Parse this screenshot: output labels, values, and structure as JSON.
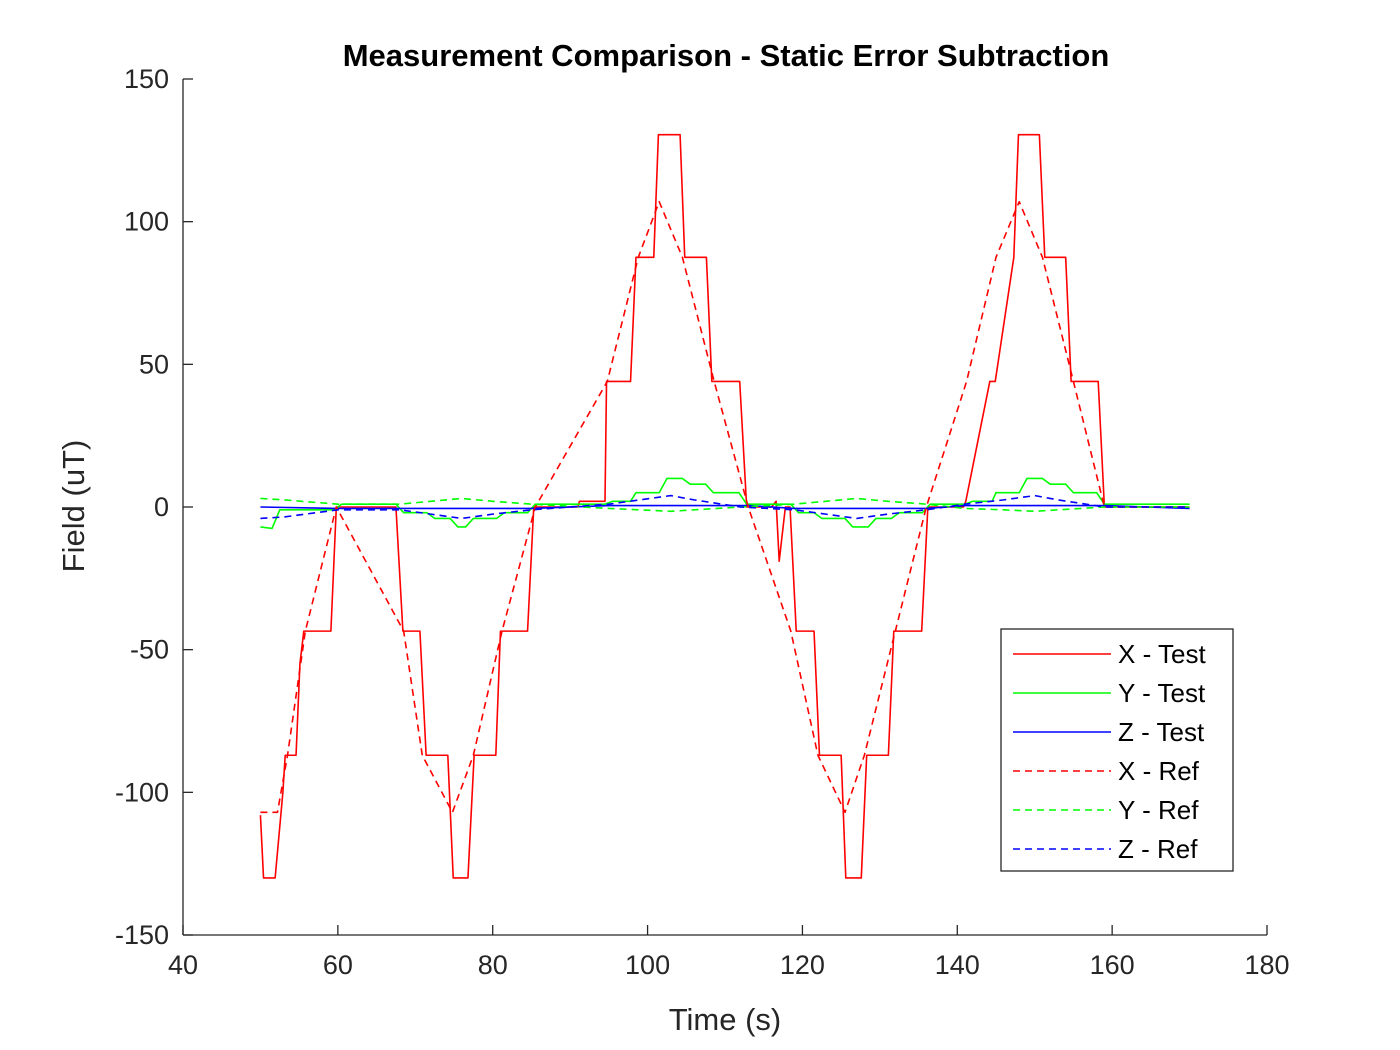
{
  "chart_data": {
    "type": "line",
    "title": "Measurement Comparison - Static Error Subtraction",
    "xlabel": "Time (s)",
    "ylabel": "Field (uT)",
    "xlim": [
      40,
      180
    ],
    "ylim": [
      -150,
      150
    ],
    "xticks": [
      40,
      60,
      80,
      100,
      120,
      140,
      160,
      180
    ],
    "yticks": [
      -150,
      -100,
      -50,
      0,
      50,
      100,
      150
    ],
    "xtick_labels": [
      "40",
      "60",
      "80",
      "100",
      "120",
      "140",
      "160",
      "180"
    ],
    "ytick_labels": [
      "-150",
      "-100",
      "-50",
      "0",
      "50",
      "100",
      "150"
    ],
    "grid": false,
    "legend_position": "bottom-right",
    "series": [
      {
        "name": "X - Test",
        "color": "#ff0000",
        "dash": "solid",
        "x": [
          50,
          50.4,
          51.9,
          52.9,
          53.2,
          54.6,
          55.1,
          55.6,
          59.1,
          59.8,
          67.5,
          68.4,
          70.6,
          71.4,
          74.2,
          74.9,
          76.8,
          77.6,
          80.4,
          81.0,
          84.5,
          85.3,
          91.0,
          91.2,
          94.5,
          94.7,
          97.8,
          98.5,
          100.8,
          101.4,
          104.2,
          104.8,
          107.6,
          108.3,
          111.9,
          112.8,
          116.0,
          116.6,
          117.0,
          117.8,
          118.4,
          119.2,
          121.5,
          122.2,
          125.0,
          125.6,
          127.6,
          128.3,
          131.1,
          131.8,
          135.4,
          136.2,
          140.8,
          141.1,
          144.2,
          144.9,
          147.3,
          147.9,
          150.6,
          151.3,
          154.0,
          154.7,
          158.2,
          159.0,
          170
        ],
        "y": [
          -108,
          -130,
          -130,
          -100,
          -87,
          -87,
          -55,
          -43.5,
          -43.5,
          0,
          0,
          -43.5,
          -43.5,
          -87,
          -87,
          -130,
          -130,
          -87,
          -87,
          -43.5,
          -43.5,
          0,
          0,
          2,
          2,
          44,
          44,
          87.5,
          87.5,
          130.5,
          130.5,
          87.5,
          87.5,
          44,
          44,
          0,
          0,
          2,
          -19,
          0,
          0,
          -43.5,
          -43.5,
          -87,
          -87,
          -130,
          -130,
          -87,
          -87,
          -43.5,
          -43.5,
          0,
          0,
          2,
          44,
          44,
          87.5,
          130.5,
          130.5,
          87.5,
          87.5,
          44,
          44,
          0,
          0
        ]
      },
      {
        "name": "Y - Test",
        "color": "#00ff00",
        "dash": "solid",
        "x": [
          50,
          51.5,
          52.5,
          59.5,
          60.5,
          67.5,
          68.5,
          71.5,
          72.5,
          74.5,
          75.5,
          76.5,
          77.5,
          80.5,
          81.5,
          84.5,
          85.5,
          94.5,
          95.5,
          97.8,
          98.5,
          101.5,
          102.5,
          104.5,
          105.5,
          107.5,
          108.5,
          111.8,
          112.8,
          118.5,
          119.5,
          121.5,
          122.5,
          125.5,
          126.5,
          128.5,
          129.5,
          131.5,
          132.5,
          135.5,
          136.5,
          141.0,
          142.0,
          144.5,
          145.0,
          148.0,
          149.0,
          151.0,
          152.0,
          154.0,
          155.0,
          158.0,
          159.0,
          170
        ],
        "y": [
          -7,
          -7.5,
          -1,
          -1,
          1,
          1,
          -2,
          -2,
          -4,
          -4,
          -7,
          -7,
          -4,
          -4,
          -2,
          -2,
          1,
          1,
          2,
          2,
          5,
          5,
          10,
          10,
          8,
          8,
          5,
          5,
          1,
          1,
          -2,
          -2,
          -4,
          -4,
          -7,
          -7,
          -4,
          -4,
          -2,
          -2,
          1,
          1,
          2,
          2,
          5,
          5,
          10,
          10,
          8,
          8,
          5,
          5,
          1,
          1
        ]
      },
      {
        "name": "Z - Test",
        "color": "#0000ff",
        "dash": "solid",
        "x": [
          50,
          60,
          68,
          85,
          95,
          113,
          119,
          136,
          141,
          159,
          170
        ],
        "y": [
          0,
          -0.5,
          -0.5,
          -0.5,
          0.5,
          0.5,
          -0.5,
          -0.5,
          0.5,
          0.5,
          -0.5
        ]
      },
      {
        "name": "X - Ref",
        "color": "#ff0000",
        "dash": "dashed",
        "x": [
          50,
          52.2,
          53.5,
          55.8,
          59.8,
          68.5,
          70.9,
          74.8,
          77.5,
          81.2,
          85.5,
          94.8,
          98.8,
          101.5,
          104.5,
          108.6,
          113.0,
          118.5,
          122.0,
          125.5,
          128.0,
          132.0,
          136.0,
          141.2,
          145.0,
          148.0,
          151.0,
          155.0,
          159.0,
          170
        ],
        "y": [
          -107,
          -107,
          -87,
          -43.5,
          0,
          -43.5,
          -87,
          -107,
          -87,
          -43.5,
          0,
          44,
          87.5,
          107,
          87.5,
          44,
          0,
          -43.5,
          -87,
          -107,
          -87,
          -43.5,
          0,
          44,
          87.5,
          107,
          87.5,
          44,
          0,
          0
        ]
      },
      {
        "name": "Y - Ref",
        "color": "#00ff00",
        "dash": "dashed",
        "x": [
          50,
          53,
          60,
          68,
          72,
          76,
          80,
          85,
          95,
          99,
          103,
          106,
          112,
          119,
          123,
          127,
          131,
          136,
          141,
          146,
          150,
          153,
          159,
          170
        ],
        "y": [
          3,
          2.5,
          1,
          1,
          2,
          3,
          2,
          1,
          -0.5,
          -1,
          -1.5,
          -1,
          0,
          1,
          2,
          3,
          2,
          1,
          -0.5,
          -1,
          -1.5,
          -1,
          0,
          0
        ]
      },
      {
        "name": "Z - Ref",
        "color": "#0000ff",
        "dash": "dashed",
        "x": [
          50,
          53,
          60,
          68,
          72,
          76,
          80,
          85,
          95,
          99,
          103,
          106,
          112,
          119,
          123,
          127,
          131,
          136,
          141,
          146,
          150,
          153,
          159,
          170
        ],
        "y": [
          -4,
          -3.5,
          -1,
          -1,
          -2.5,
          -4,
          -2.5,
          -1,
          1,
          2.5,
          4,
          2.5,
          0,
          -1,
          -2.5,
          -4,
          -2.5,
          -1,
          1,
          2.5,
          4,
          2.5,
          0,
          0
        ]
      }
    ]
  }
}
